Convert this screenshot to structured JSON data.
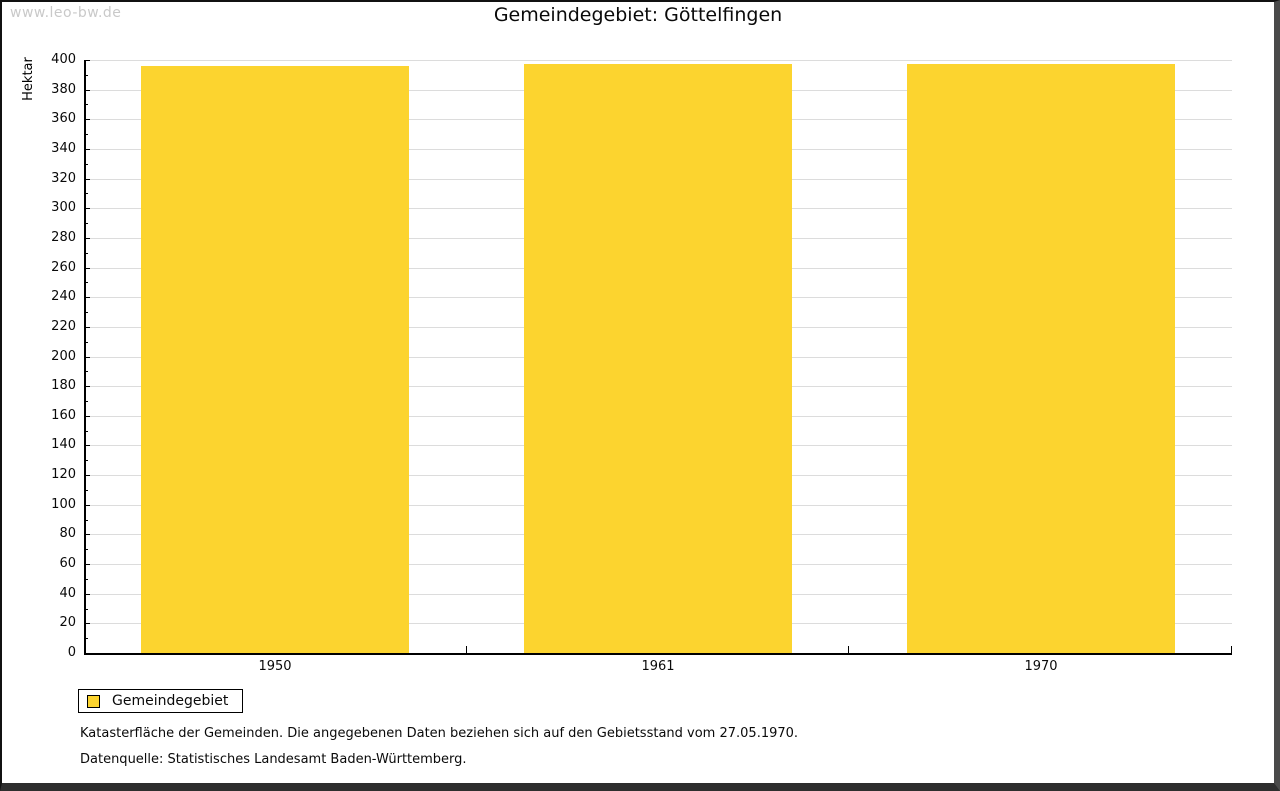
{
  "watermark": "www.leo-bw.de",
  "header": {
    "title": "Gemeindegebiet: Göttelfingen"
  },
  "legend": {
    "label": "Gemeindegebiet",
    "swatch_color": "#FCD42F"
  },
  "footnotes": {
    "line1": "Katasterfläche der Gemeinden. Die angegebenen Daten beziehen sich auf den Gebietsstand vom 27.05.1970.",
    "line2": "Datenquelle: Statistisches Landesamt Baden-Württemberg."
  },
  "chart_data": {
    "type": "bar",
    "title": "Gemeindegebiet: Göttelfingen",
    "categories": [
      "1950",
      "1961",
      "1970"
    ],
    "series": [
      {
        "name": "Gemeindegebiet",
        "values": [
          396,
          397,
          397
        ]
      }
    ],
    "xlabel": "",
    "ylabel": "Hektar",
    "ylim": [
      0,
      400
    ],
    "y_major_step": 20,
    "y_minor_step": 10,
    "grid": true,
    "grid_color": "#dcdcdc",
    "bar_color": "#FCD42F",
    "legend_position": "below-left"
  }
}
